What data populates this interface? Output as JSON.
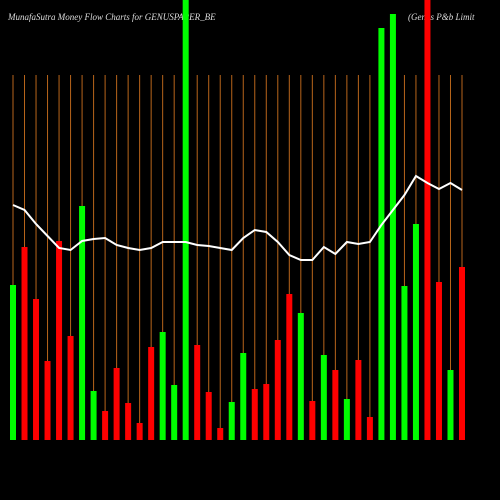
{
  "chart_data": {
    "type": "bar",
    "title": "MunafaSutra  Money Flow  Charts for GENUSPAPER_BE",
    "subtitle": "(Genus P&b Limit",
    "categories": [
      null,
      null,
      null,
      null,
      null,
      null,
      null,
      null,
      null,
      null,
      null,
      null,
      null,
      null,
      null,
      null,
      null,
      null,
      null,
      null,
      null,
      null,
      null,
      null,
      null,
      null,
      null,
      null,
      null,
      null,
      null,
      null,
      null,
      null,
      null,
      null,
      null,
      null,
      null,
      null
    ],
    "values": [
      155,
      193,
      141,
      79,
      199,
      104,
      234,
      49,
      29,
      72,
      37,
      17,
      93,
      108,
      55,
      440,
      95,
      48,
      12,
      38,
      87,
      51,
      56,
      100,
      146,
      127,
      39,
      85,
      70,
      41,
      80,
      23,
      412,
      426,
      154,
      216,
      440,
      158,
      70,
      173
    ],
    "colors": [
      "#00ff00",
      "#ff0000",
      "#ff0000",
      "#ff0000",
      "#ff0000",
      "#ff0000",
      "#00ff00",
      "#00ff00",
      "#ff0000",
      "#ff0000",
      "#ff0000",
      "#ff0000",
      "#ff0000",
      "#00ff00",
      "#00ff00",
      "#00ff00",
      "#ff0000",
      "#ff0000",
      "#ff0000",
      "#00ff00",
      "#00ff00",
      "#ff0000",
      "#ff0000",
      "#ff0000",
      "#ff0000",
      "#00ff00",
      "#ff0000",
      "#00ff00",
      "#ff0000",
      "#00ff00",
      "#ff0000",
      "#ff0000",
      "#00ff00",
      "#00ff00",
      "#00ff00",
      "#00ff00",
      "#ff0000",
      "#ff0000",
      "#00ff00",
      "#ff0000"
    ],
    "line": {
      "color": "#ffffff",
      "values": [
        235,
        230,
        216,
        204,
        192,
        190,
        199,
        201,
        202,
        195,
        192,
        190,
        192,
        198,
        198,
        198,
        195,
        194,
        192,
        190,
        202,
        210,
        208,
        198,
        185,
        180,
        180,
        193,
        186,
        198,
        196,
        198,
        215,
        230,
        245,
        264,
        257,
        251,
        257,
        250
      ]
    },
    "grid_color": "#b8651b",
    "ylim": [
      0,
      440
    ]
  }
}
